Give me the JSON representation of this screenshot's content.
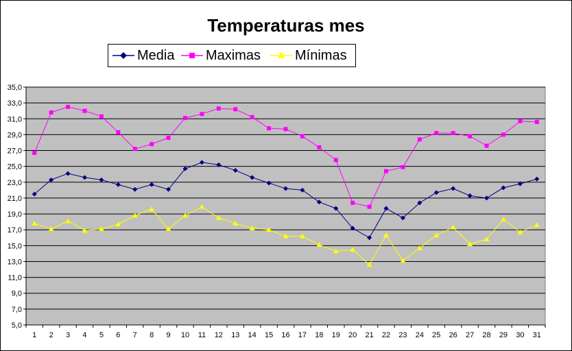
{
  "chart_data": {
    "type": "line",
    "title": "Temperaturas mes",
    "xlabel": "",
    "ylabel": "",
    "ylim": [
      5.0,
      35.0
    ],
    "yticks": [
      "5,0",
      "7,0",
      "9,0",
      "11,0",
      "13,0",
      "15,0",
      "17,0",
      "19,0",
      "21,0",
      "23,0",
      "25,0",
      "27,0",
      "29,0",
      "31,0",
      "33,0",
      "35,0"
    ],
    "categories": [
      "1",
      "2",
      "3",
      "4",
      "5",
      "6",
      "7",
      "8",
      "9",
      "10",
      "11",
      "12",
      "13",
      "14",
      "15",
      "16",
      "17",
      "18",
      "19",
      "20",
      "21",
      "22",
      "23",
      "24",
      "25",
      "26",
      "27",
      "28",
      "29",
      "30",
      "31"
    ],
    "grid": true,
    "legend_position": "top",
    "plot_background": "#c0c0c0",
    "series": [
      {
        "name": "Media",
        "color": "#000080",
        "marker": "diamond",
        "values": [
          21.5,
          23.3,
          24.1,
          23.6,
          23.3,
          22.7,
          22.1,
          22.7,
          22.1,
          24.7,
          25.5,
          25.2,
          24.5,
          23.6,
          22.9,
          22.2,
          22.0,
          20.5,
          19.7,
          17.2,
          16.0,
          19.7,
          18.5,
          20.4,
          21.7,
          22.2,
          21.3,
          21.0,
          22.3,
          22.8,
          23.4
        ]
      },
      {
        "name": "Maximas",
        "color": "#ff00ff",
        "marker": "square",
        "values": [
          26.7,
          31.8,
          32.5,
          32.0,
          31.3,
          29.3,
          27.2,
          27.8,
          28.6,
          31.1,
          31.6,
          32.3,
          32.2,
          31.2,
          29.8,
          29.7,
          28.8,
          27.4,
          25.8,
          20.4,
          19.9,
          24.4,
          24.9,
          28.4,
          29.2,
          29.2,
          28.8,
          27.6,
          29.0,
          30.7,
          30.6
        ]
      },
      {
        "name": "Mínimas",
        "color": "#ffff00",
        "marker": "triangle",
        "values": [
          17.8,
          17.1,
          18.1,
          16.9,
          17.1,
          17.7,
          18.8,
          19.6,
          17.1,
          18.8,
          19.9,
          18.5,
          17.8,
          17.2,
          17.0,
          16.2,
          16.2,
          15.1,
          14.3,
          14.5,
          12.6,
          16.3,
          13.1,
          14.7,
          16.3,
          17.3,
          15.2,
          15.8,
          18.3,
          16.7,
          17.6
        ]
      }
    ]
  }
}
